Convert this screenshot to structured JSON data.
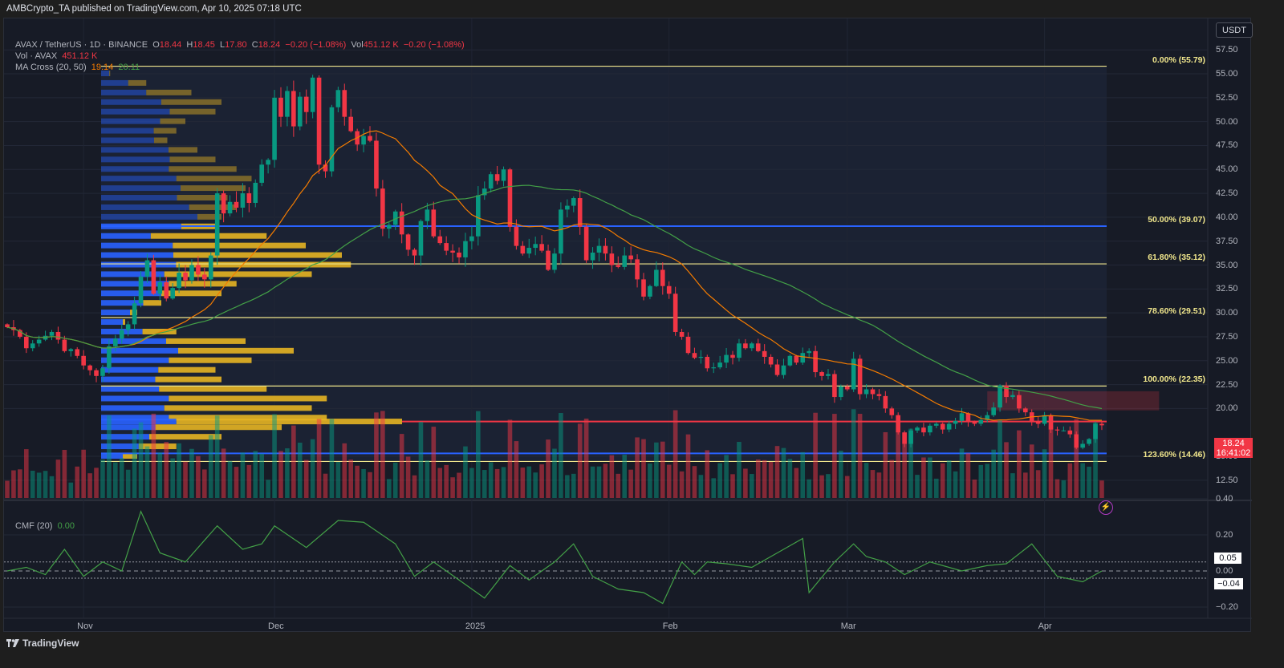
{
  "header": {
    "published": "AMBCrypto_TA published on TradingView.com, Apr 10, 2025 07:18 UTC"
  },
  "legend": {
    "symbol": "AVAX / TetherUS · 1D · BINANCE",
    "o_label": "O",
    "o": "18.44",
    "h_label": "H",
    "h": "18.45",
    "l_label": "L",
    "l": "17.80",
    "c_label": "C",
    "c": "18.24",
    "change": "−0.20 (−1.08%)",
    "vol_label": "Vol",
    "vol": "451.12 K",
    "vol_change": "−0.20 (−1.08%)",
    "vol_title": "Vol · AVAX",
    "vol_value": "451.12 K",
    "ma_title": "MA Cross (20, 50)",
    "ma20": "19.14",
    "ma50": "20.11",
    "cmf_title": "CMF (20)",
    "cmf_value": "0.00"
  },
  "axis": {
    "currency": "USDT",
    "price_ticks": [
      "57.50",
      "55.00",
      "52.50",
      "50.00",
      "47.50",
      "45.00",
      "42.50",
      "40.00",
      "37.50",
      "35.00",
      "32.50",
      "30.00",
      "27.50",
      "25.00",
      "22.50",
      "20.00",
      "15.00",
      "12.50"
    ],
    "cmf_ticks": [
      "0.40",
      "0.20",
      "0.00",
      "−0.20"
    ],
    "cmf_upper": "0.05",
    "cmf_lower": "−0.04",
    "time_labels": [
      {
        "label": "Nov",
        "day": 12
      },
      {
        "label": "Dec",
        "day": 42
      },
      {
        "label": "2025",
        "day": 73
      },
      {
        "label": "Feb",
        "day": 104
      },
      {
        "label": "Mar",
        "day": 132
      },
      {
        "label": "Apr",
        "day": 163
      }
    ],
    "last_price": "18.24",
    "countdown": "16:41:02"
  },
  "footer": {
    "brand": "TradingView"
  },
  "colors": {
    "up": "#089981",
    "down": "#f23645",
    "ma20": "#f57c00",
    "ma50": "#43a047",
    "fib": "#f0e68c",
    "cmf": "#43a047",
    "profile_up": "#2962ff",
    "profile_down": "#e6b422"
  },
  "chart_data": {
    "type": "candlestick",
    "title": "AVAX / TetherUS · 1D · BINANCE",
    "start_date": "2024-10-20",
    "end_date": "2025-04-10",
    "closes": [
      28.5,
      28.2,
      27.5,
      26.3,
      26.8,
      27.2,
      27.6,
      28.0,
      27.2,
      26.0,
      26.2,
      25.5,
      24.5,
      24.0,
      23.4,
      24.2,
      26.5,
      27.3,
      28.2,
      28.8,
      31.0,
      33.8,
      35.5,
      32.0,
      33.2,
      31.5,
      32.6,
      34.2,
      33.4,
      35.0,
      34.0,
      33.5,
      36.0,
      42.5,
      40.4,
      41.6,
      41.0,
      42.5,
      41.5,
      43.6,
      45.5,
      46.0,
      52.5,
      50.5,
      53.2,
      49.5,
      52.6,
      51.0,
      54.6,
      45.5,
      44.8,
      51.5,
      53.3,
      50.5,
      49.0,
      47.6,
      48.5,
      48.0,
      43.0,
      38.8,
      39.2,
      40.6,
      38.2,
      36.6,
      36.0,
      39.6,
      40.8,
      38.0,
      37.3,
      36.5,
      36.3,
      35.8,
      37.5,
      38.0,
      42.3,
      43.0,
      44.5,
      43.8,
      45.0,
      39.0,
      37.0,
      36.2,
      36.8,
      37.2,
      36.5,
      34.5,
      36.2,
      40.8,
      41.2,
      42.0,
      39.0,
      35.5,
      36.3,
      37.0,
      36.2,
      35.0,
      34.8,
      36.0,
      35.6,
      33.5,
      31.7,
      32.8,
      34.5,
      32.8,
      32.0,
      28.0,
      27.5,
      25.8,
      25.3,
      25.4,
      24.2,
      24.3,
      24.8,
      25.6,
      25.3,
      26.8,
      26.3,
      26.8,
      26.0,
      25.4,
      24.6,
      23.5,
      24.5,
      25.5,
      24.8,
      25.8,
      26.0,
      23.8,
      23.4,
      23.6,
      21.2,
      22.3,
      22.0,
      25.2,
      21.5,
      22.0,
      21.5,
      21.3,
      20.0,
      19.3,
      17.5,
      16.3,
      17.7,
      18.0,
      17.5,
      18.2,
      18.4,
      17.8,
      18.4,
      18.7,
      19.5,
      18.6,
      18.4,
      18.8,
      19.3,
      20.1,
      22.4,
      21.2,
      21.4,
      20.0,
      19.6,
      18.6,
      18.4,
      19.3,
      17.8,
      17.7,
      17.7,
      17.3,
      15.9,
      16.3,
      16.8,
      18.4,
      18.24
    ],
    "ma_periods": [
      20,
      50
    ],
    "y_range": [
      11,
      59
    ],
    "fib_levels": [
      {
        "label": "0.00% (55.79)",
        "value": 55.79
      },
      {
        "label": "50.00% (39.07)",
        "value": 39.07
      },
      {
        "label": "61.80% (35.12)",
        "value": 35.12
      },
      {
        "label": "78.60% (29.51)",
        "value": 29.51
      },
      {
        "label": "100.00% (22.35)",
        "value": 22.35
      },
      {
        "label": "123.60% (14.46)",
        "value": 14.46
      }
    ],
    "support_lines": [
      {
        "value": 39.07,
        "color": "#2962ff"
      },
      {
        "value": 15.3,
        "color": "#2962ff"
      },
      {
        "value": 18.64,
        "color": "#f23645"
      }
    ],
    "supply_zone": {
      "from_day": 154,
      "to_day": 181,
      "low": 19.8,
      "high": 21.8
    },
    "volume_profile": {
      "prices": [
        55,
        54,
        53,
        52,
        51,
        50,
        49,
        48,
        47,
        46,
        45,
        44,
        43,
        42,
        41,
        40,
        39,
        38,
        37,
        36,
        35,
        34,
        33,
        32,
        31,
        30,
        29,
        28,
        27,
        26,
        25,
        24,
        23,
        22,
        21,
        20,
        19,
        18.6,
        18,
        17,
        16,
        15
      ],
      "total": [
        3,
        15,
        30,
        40,
        38,
        28,
        25,
        22,
        32,
        38,
        45,
        50,
        48,
        42,
        45,
        40,
        38,
        55,
        68,
        80,
        83,
        70,
        45,
        40,
        20,
        12,
        8,
        25,
        48,
        64,
        50,
        38,
        40,
        55,
        75,
        70,
        75,
        100,
        60,
        40,
        25,
        12
      ],
      "up_share": [
        0.9,
        0.6,
        0.5,
        0.5,
        0.6,
        0.7,
        0.7,
        0.8,
        0.7,
        0.6,
        0.5,
        0.5,
        0.55,
        0.6,
        0.65,
        0.8,
        0.7,
        0.3,
        0.35,
        0.3,
        0.3,
        0.3,
        0.5,
        0.5,
        0.7,
        0.8,
        0.9,
        0.55,
        0.45,
        0.4,
        0.45,
        0.5,
        0.45,
        0.35,
        0.3,
        0.3,
        0.3,
        0.25,
        0.3,
        0.4,
        0.5,
        0.6
      ]
    },
    "cmf": {
      "y_range": [
        -0.3,
        0.4
      ],
      "days": [
        0,
        3,
        6,
        9,
        12,
        15,
        18,
        21,
        24,
        28,
        33,
        37,
        40,
        42,
        47,
        52,
        56,
        61,
        64,
        67,
        71,
        75,
        79,
        82,
        86,
        89,
        92,
        96,
        100,
        103,
        106,
        108,
        110,
        113,
        117,
        121,
        125,
        126,
        130,
        133,
        135,
        138,
        141,
        145,
        150,
        154,
        157,
        161,
        165,
        169,
        172
      ],
      "values": [
        0,
        0.02,
        -0.02,
        0.12,
        -0.03,
        0.05,
        0,
        0.33,
        0.1,
        0.05,
        0.25,
        0.12,
        0.15,
        0.25,
        0.13,
        0.28,
        0.27,
        0.15,
        -0.03,
        0.05,
        -0.05,
        -0.15,
        0.03,
        -0.05,
        0.05,
        0.15,
        -0.03,
        -0.1,
        -0.12,
        -0.18,
        0.05,
        -0.02,
        0.05,
        0.04,
        0.02,
        0.1,
        0.18,
        -0.12,
        0.05,
        0.15,
        0.08,
        0.05,
        -0.02,
        0.05,
        0,
        0.03,
        0.04,
        0.15,
        -0.03,
        -0.06,
        0
      ]
    }
  }
}
